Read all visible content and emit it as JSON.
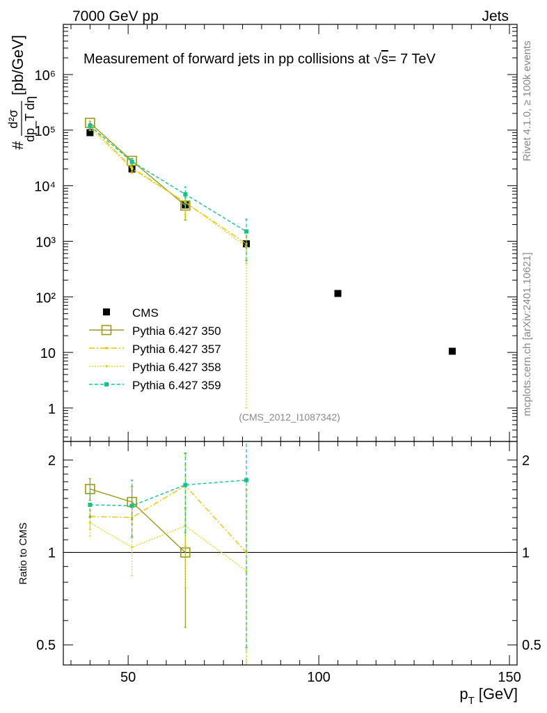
{
  "header": {
    "left": "7000 GeV pp",
    "right": "Jets"
  },
  "side_labels": {
    "rivet": "Rivet 4.1.0, ≥ 100k events",
    "mcplots": "mcplots.cern.ch [arXiv:2401.10621]"
  },
  "chart_data": [
    {
      "type": "scatter",
      "panel": "main",
      "title": "Measurement of forward jets in pp collisions at √s = 7 TeV",
      "title_parts": {
        "pre": "Measurement of forward jets in pp collisions at ",
        "sqrt": "√",
        "s": "s",
        "post": "= 7 TeV"
      },
      "ylabel": "# d²σ / dp_T dη [pb/GeV]",
      "ylabel_parts": {
        "hash": "#",
        "num": "d²σ",
        "den": "dp_T dη",
        "unit": "[pb/GeV]"
      },
      "yscale": "log",
      "ylim": [
        0.25,
        8000000
      ],
      "xlim": [
        33,
        152
      ],
      "yticks": [
        {
          "value": 1,
          "label": "1"
        },
        {
          "value": 10,
          "label": "10"
        },
        {
          "value": 100,
          "label": "10²"
        },
        {
          "value": 1000,
          "label": "10³"
        },
        {
          "value": 10000,
          "label": "10⁴"
        },
        {
          "value": 100000,
          "label": "10⁵"
        },
        {
          "value": 1000000,
          "label": "10⁶"
        }
      ],
      "analysis_label": "(CMS_2012_I1087342)",
      "series": [
        {
          "name": "CMS",
          "color": "#000000",
          "style": "data",
          "x": [
            40,
            51,
            65,
            81,
            105,
            135
          ],
          "y": [
            90000,
            20000,
            4500,
            900,
            115,
            10.5
          ]
        },
        {
          "name": "Pythia 6.427 350",
          "color": "#9b9a18",
          "style": "solid-open-square",
          "x": [
            40,
            51,
            65
          ],
          "y": [
            135000,
            28000,
            4400
          ],
          "err_lo": [
            10000,
            3000,
            2000
          ],
          "err_hi": [
            10000,
            3000,
            1800
          ]
        },
        {
          "name": "Pythia 6.427 357",
          "color": "#f0c000",
          "style": "dashdot",
          "x": [
            40,
            51,
            65,
            81
          ],
          "y": [
            120000,
            21000,
            5000,
            900
          ],
          "err_lo": [
            12000,
            3000,
            2000,
            500
          ],
          "err_hi": [
            12000,
            3000,
            2000,
            500
          ]
        },
        {
          "name": "Pythia 6.427 358",
          "color": "#d8d826",
          "style": "dotted",
          "x": [
            40,
            51,
            65,
            81
          ],
          "y": [
            110000,
            20000,
            5000,
            800
          ],
          "err_lo": [
            12000,
            3500,
            2500,
            799
          ],
          "err_hi": [
            12000,
            3500,
            2500,
            500
          ]
        },
        {
          "name": "Pythia 6.427 359",
          "color": "#18c088",
          "style": "dashed",
          "x": [
            40,
            51,
            65,
            81
          ],
          "y": [
            120000,
            27000,
            7000,
            1500
          ],
          "err_lo": [
            12000,
            4000,
            2500,
            1050
          ],
          "err_hi": [
            12000,
            4000,
            2500,
            1000
          ]
        }
      ]
    },
    {
      "type": "scatter",
      "panel": "ratio",
      "ylabel": "Ratio to CMS",
      "xlabel": "p_T [GeV]",
      "xlabel_parts": {
        "p": "p",
        "sub": "T",
        "unit": "[GeV]"
      },
      "yscale": "log",
      "ylim": [
        0.43,
        2.3
      ],
      "xlim": [
        33,
        152
      ],
      "xticks": [
        50,
        100,
        150
      ],
      "yticks": [
        {
          "value": 0.5,
          "label": "0.5"
        },
        {
          "value": 1,
          "label": "1"
        },
        {
          "value": 2,
          "label": "2"
        }
      ],
      "reference": 1,
      "series": [
        {
          "name": "Pythia 6.427 350",
          "color": "#9b9a18",
          "style": "solid-open-square",
          "x": [
            40,
            51,
            65
          ],
          "y": [
            1.61,
            1.46,
            1.0
          ],
          "err_lo": [
            0.13,
            0.18,
            0.43
          ],
          "err_hi": [
            0.13,
            0.18,
            0.4
          ]
        },
        {
          "name": "Pythia 6.427 357",
          "color": "#f0c000",
          "style": "dashdot",
          "x": [
            40,
            51,
            65,
            81
          ],
          "y": [
            1.31,
            1.3,
            1.65,
            1.0
          ],
          "err_lo": [
            0.12,
            0.17,
            0.6,
            0.6
          ],
          "err_hi": [
            0.12,
            0.17,
            0.45,
            0.6
          ]
        },
        {
          "name": "Pythia 6.427 358",
          "color": "#d8d826",
          "style": "dotted",
          "x": [
            40,
            51,
            65,
            81
          ],
          "y": [
            1.25,
            1.04,
            1.22,
            0.87
          ],
          "err_lo": [
            0.12,
            0.2,
            0.45,
            0.5
          ],
          "err_hi": [
            0.12,
            0.2,
            0.45,
            0.5
          ]
        },
        {
          "name": "Pythia 6.427 359",
          "color": "#18c088",
          "style": "dashed",
          "x": [
            40,
            51,
            65,
            81
          ],
          "y": [
            1.43,
            1.42,
            1.66,
            1.72
          ],
          "err_lo": [
            0.13,
            0.3,
            0.5,
            1.23
          ],
          "err_hi": [
            0.13,
            0.3,
            0.45,
            1.0
          ]
        }
      ]
    }
  ]
}
